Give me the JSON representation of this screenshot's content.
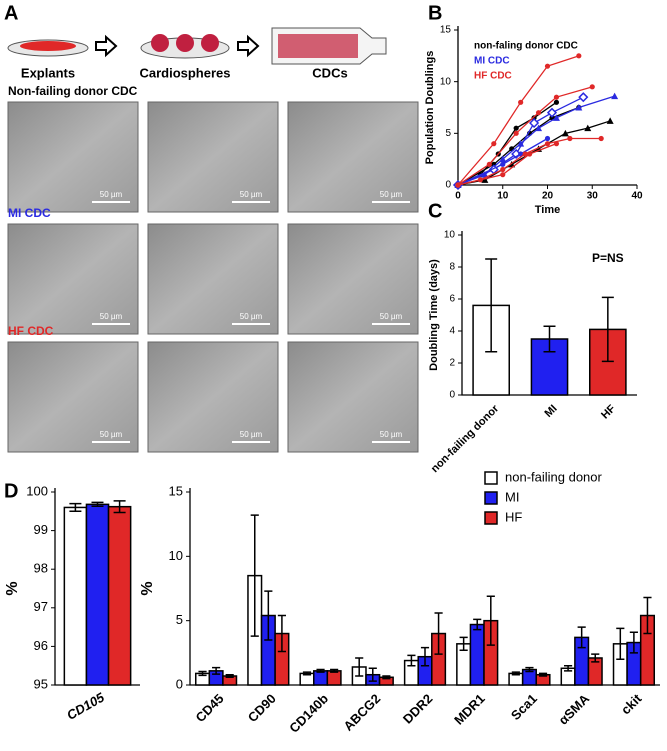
{
  "panel_labels": [
    "A",
    "B",
    "C",
    "D"
  ],
  "panel_a": {
    "steps": [
      "Explants",
      "Cardiospheres",
      "CDCs"
    ],
    "rows": [
      "Non-failing donor CDC",
      "MI CDC",
      "HF CDC"
    ],
    "row_colors": [
      "#000000",
      "#2a2ae0",
      "#e02828"
    ],
    "scale_bar": "50 µm"
  },
  "chart_data": [
    {
      "type": "line",
      "xlabel": "Time",
      "ylabel": "Population Doublings",
      "xlim": [
        0,
        40
      ],
      "xticks": [
        0,
        10,
        20,
        30,
        40
      ],
      "ylim": [
        0,
        15
      ],
      "yticks": [
        0,
        5,
        10,
        15
      ],
      "legend": [
        {
          "name": "non-faling  donor CDC",
          "color": "#000000"
        },
        {
          "name": "MI CDC",
          "color": "#2a2ae0"
        },
        {
          "name": "HF CDC",
          "color": "#e02828"
        }
      ],
      "series": [
        {
          "color": "#000000",
          "marker": "circle",
          "x": [
            0,
            5,
            9,
            13,
            17,
            22
          ],
          "values": [
            0,
            1,
            3,
            5.5,
            6.5,
            8
          ]
        },
        {
          "color": "#000000",
          "marker": "triangle",
          "x": [
            0,
            6,
            12,
            18,
            24,
            29,
            34
          ],
          "values": [
            0,
            0.5,
            2,
            3.5,
            5,
            5.5,
            6.2
          ]
        },
        {
          "color": "#000000",
          "marker": "circle",
          "x": [
            0,
            8,
            12,
            16,
            21,
            27
          ],
          "values": [
            0,
            2,
            3.5,
            5,
            6.5,
            7.5
          ]
        },
        {
          "color": "#2a2ae0",
          "marker": "triangle",
          "x": [
            0,
            6,
            10,
            14,
            18,
            22,
            27,
            35
          ],
          "values": [
            0,
            1,
            2.5,
            4,
            5.5,
            6.5,
            7.5,
            8.6
          ]
        },
        {
          "color": "#2a2ae0",
          "marker": "diamond",
          "x": [
            0,
            8,
            13,
            17,
            21,
            28
          ],
          "values": [
            0,
            1.5,
            3,
            6,
            7,
            8.5
          ]
        },
        {
          "color": "#2a2ae0",
          "marker": "circle",
          "x": [
            0,
            10,
            14,
            20
          ],
          "values": [
            0,
            2,
            3,
            4.5
          ]
        },
        {
          "color": "#e02828",
          "marker": "circle",
          "x": [
            0,
            8,
            14,
            20,
            27
          ],
          "values": [
            0,
            4,
            8,
            11.5,
            12.5
          ]
        },
        {
          "color": "#e02828",
          "marker": "circle",
          "x": [
            0,
            7,
            13,
            18,
            22,
            30
          ],
          "values": [
            0,
            2,
            5,
            7,
            8.5,
            9.5
          ]
        },
        {
          "color": "#e02828",
          "marker": "circle",
          "x": [
            0,
            5,
            10,
            15,
            20,
            25,
            32
          ],
          "values": [
            0,
            0.5,
            1.5,
            3,
            4,
            4.5,
            4.5
          ]
        },
        {
          "color": "#e02828",
          "marker": "circle",
          "x": [
            0,
            10,
            16,
            22
          ],
          "values": [
            0,
            1,
            3,
            4
          ]
        }
      ]
    },
    {
      "type": "bar",
      "ylabel": "Doubling Time (days)",
      "annotation": "P=NS",
      "categories": [
        "non-failing donor",
        "MI",
        "HF"
      ],
      "values": [
        5.6,
        3.5,
        4.1
      ],
      "errors": [
        2.9,
        0.8,
        2.0
      ],
      "colors": [
        "#ffffff",
        "#2020f0",
        "#e02828"
      ],
      "ylim": [
        0,
        10
      ],
      "yticks": [
        0,
        2,
        4,
        6,
        8,
        10
      ]
    },
    {
      "type": "bar",
      "ylabel": "%",
      "categories": [
        "CD105"
      ],
      "ylim": [
        95,
        100
      ],
      "yticks": [
        95,
        96,
        97,
        98,
        99,
        100
      ],
      "series": [
        {
          "color": "#ffffff",
          "values": [
            99.6
          ],
          "errors": [
            0.1
          ]
        },
        {
          "color": "#2020f0",
          "values": [
            99.68
          ],
          "errors": [
            0.05
          ]
        },
        {
          "color": "#e02828",
          "values": [
            99.62
          ],
          "errors": [
            0.15
          ]
        }
      ]
    },
    {
      "type": "bar",
      "ylabel": "%",
      "legend": "top-right",
      "categories": [
        "CD45",
        "CD90",
        "CD140b",
        "ABCG2",
        "DDR2",
        "MDR1",
        "Sca1",
        "αSMA",
        "ckit"
      ],
      "ylim": [
        0,
        15
      ],
      "yticks": [
        0,
        5,
        10,
        15
      ],
      "series": [
        {
          "name": "non-failing donor",
          "color": "#ffffff",
          "values": [
            0.9,
            8.5,
            0.9,
            1.4,
            1.9,
            3.2,
            0.9,
            1.3,
            3.2
          ],
          "errors": [
            0.15,
            4.7,
            0.1,
            0.7,
            0.4,
            0.5,
            0.1,
            0.2,
            1.2
          ]
        },
        {
          "name": "MI",
          "color": "#2020f0",
          "values": [
            1.1,
            5.4,
            1.1,
            0.8,
            2.2,
            4.7,
            1.2,
            3.7,
            3.3
          ],
          "errors": [
            0.25,
            1.9,
            0.1,
            0.5,
            0.7,
            0.4,
            0.15,
            0.8,
            0.8
          ]
        },
        {
          "name": "HF",
          "color": "#e02828",
          "values": [
            0.7,
            4.0,
            1.1,
            0.6,
            4.0,
            5.0,
            0.8,
            2.1,
            5.4
          ],
          "errors": [
            0.1,
            1.4,
            0.1,
            0.1,
            1.6,
            1.9,
            0.1,
            0.3,
            1.4
          ]
        }
      ]
    }
  ]
}
